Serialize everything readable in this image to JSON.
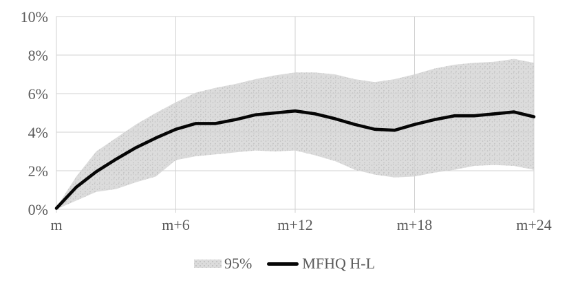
{
  "chart_data": {
    "type": "line",
    "title": "",
    "xlabel": "",
    "ylabel": "",
    "categories": [
      "m",
      "m+1",
      "m+2",
      "m+3",
      "m+4",
      "m+5",
      "m+6",
      "m+7",
      "m+8",
      "m+9",
      "m+10",
      "m+11",
      "m+12",
      "m+13",
      "m+14",
      "m+15",
      "m+16",
      "m+17",
      "m+18",
      "m+19",
      "m+20",
      "m+21",
      "m+22",
      "m+23",
      "m+24"
    ],
    "x_ticks": [
      {
        "index": 0,
        "label": "m"
      },
      {
        "index": 6,
        "label": "m+6"
      },
      {
        "index": 12,
        "label": "m+12"
      },
      {
        "index": 18,
        "label": "m+18"
      },
      {
        "index": 24,
        "label": "m+24"
      }
    ],
    "y_ticks": [
      {
        "value": 0,
        "label": "0%"
      },
      {
        "value": 2,
        "label": "2%"
      },
      {
        "value": 4,
        "label": "4%"
      },
      {
        "value": 6,
        "label": "6%"
      },
      {
        "value": 8,
        "label": "8%"
      },
      {
        "value": 10,
        "label": "10%"
      }
    ],
    "ylim": [
      0,
      10
    ],
    "grid": true,
    "legend_position": "bottom",
    "colors": {
      "band_fill": "#dcdcdc",
      "band_dots": "#bdbdbd",
      "line": "#060606",
      "gridline": "#d2d2d2",
      "axis_text": "#595959"
    },
    "series": [
      {
        "name": "95%",
        "type": "band",
        "upper": [
          0.1,
          1.7,
          3.0,
          3.7,
          4.4,
          5.0,
          5.55,
          6.05,
          6.3,
          6.5,
          6.75,
          6.95,
          7.1,
          7.1,
          7.0,
          6.75,
          6.6,
          6.75,
          7.0,
          7.3,
          7.5,
          7.6,
          7.65,
          7.8,
          7.6
        ],
        "lower": [
          0.0,
          0.45,
          0.9,
          1.05,
          1.4,
          1.7,
          2.55,
          2.75,
          2.85,
          2.95,
          3.05,
          3.0,
          3.05,
          2.8,
          2.5,
          2.05,
          1.8,
          1.65,
          1.7,
          1.9,
          2.05,
          2.25,
          2.3,
          2.25,
          2.05
        ]
      },
      {
        "name": "MFHQ H-L",
        "type": "line",
        "values": [
          0.05,
          1.15,
          1.95,
          2.6,
          3.2,
          3.7,
          4.15,
          4.45,
          4.45,
          4.65,
          4.9,
          5.0,
          5.1,
          4.95,
          4.7,
          4.4,
          4.15,
          4.1,
          4.4,
          4.65,
          4.85,
          4.85,
          4.95,
          5.05,
          4.8
        ]
      }
    ]
  }
}
